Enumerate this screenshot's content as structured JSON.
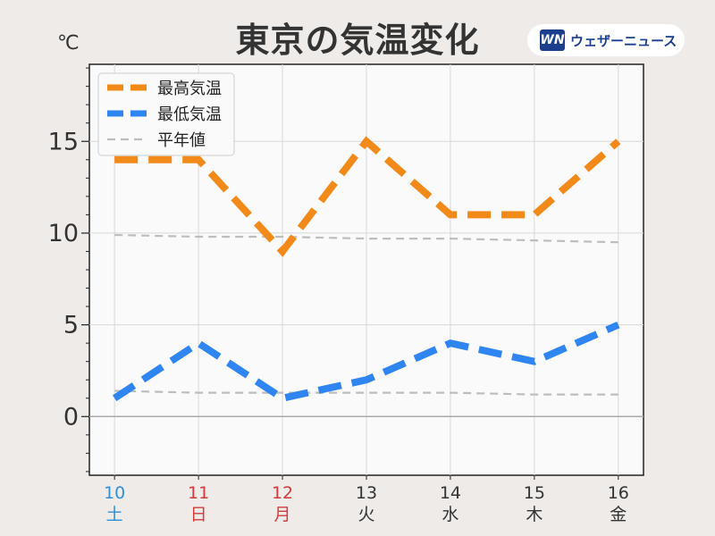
{
  "title": "東京の気温変化",
  "unit": "℃",
  "brand": {
    "mark": "WN",
    "name": "ウェザーニュース"
  },
  "colors": {
    "high": "#f28a1a",
    "low": "#2f86f2",
    "normal": "#bdbdbd",
    "weekday": "#333333",
    "saturday": "#2f8fd8",
    "holiday": "#d33b3b"
  },
  "chart_data": {
    "type": "line",
    "x": [
      10,
      11,
      12,
      13,
      14,
      15,
      16
    ],
    "x_tick_labels": [
      "10",
      "11",
      "12",
      "13",
      "14",
      "15",
      "16"
    ],
    "weekdays": [
      "土",
      "日",
      "月",
      "火",
      "水",
      "木",
      "金"
    ],
    "weekday_colors": [
      "saturday",
      "holiday",
      "holiday",
      "weekday",
      "weekday",
      "weekday",
      "weekday"
    ],
    "ylim": [
      -3.2,
      19.2
    ],
    "yticks": [
      0,
      5,
      10,
      15
    ],
    "grid": true,
    "legend_position": "top-left",
    "series": [
      {
        "name": "最高気温",
        "color": "#f28a1a",
        "style": "dashed-thick",
        "values": [
          14,
          14,
          9,
          15,
          11,
          11,
          15
        ]
      },
      {
        "name": "最低気温",
        "color": "#2f86f2",
        "style": "dashed-thick",
        "values": [
          1,
          4,
          1,
          2,
          4,
          3,
          5
        ]
      },
      {
        "name": "平年値",
        "color": "#bdbdbd",
        "style": "dashed-thin",
        "values": [
          9.9,
          9.8,
          9.8,
          9.7,
          9.7,
          9.6,
          9.5
        ]
      },
      {
        "name": "平年値",
        "color": "#bdbdbd",
        "style": "dashed-thin",
        "values": [
          1.4,
          1.3,
          1.3,
          1.3,
          1.3,
          1.2,
          1.2
        ]
      }
    ]
  }
}
